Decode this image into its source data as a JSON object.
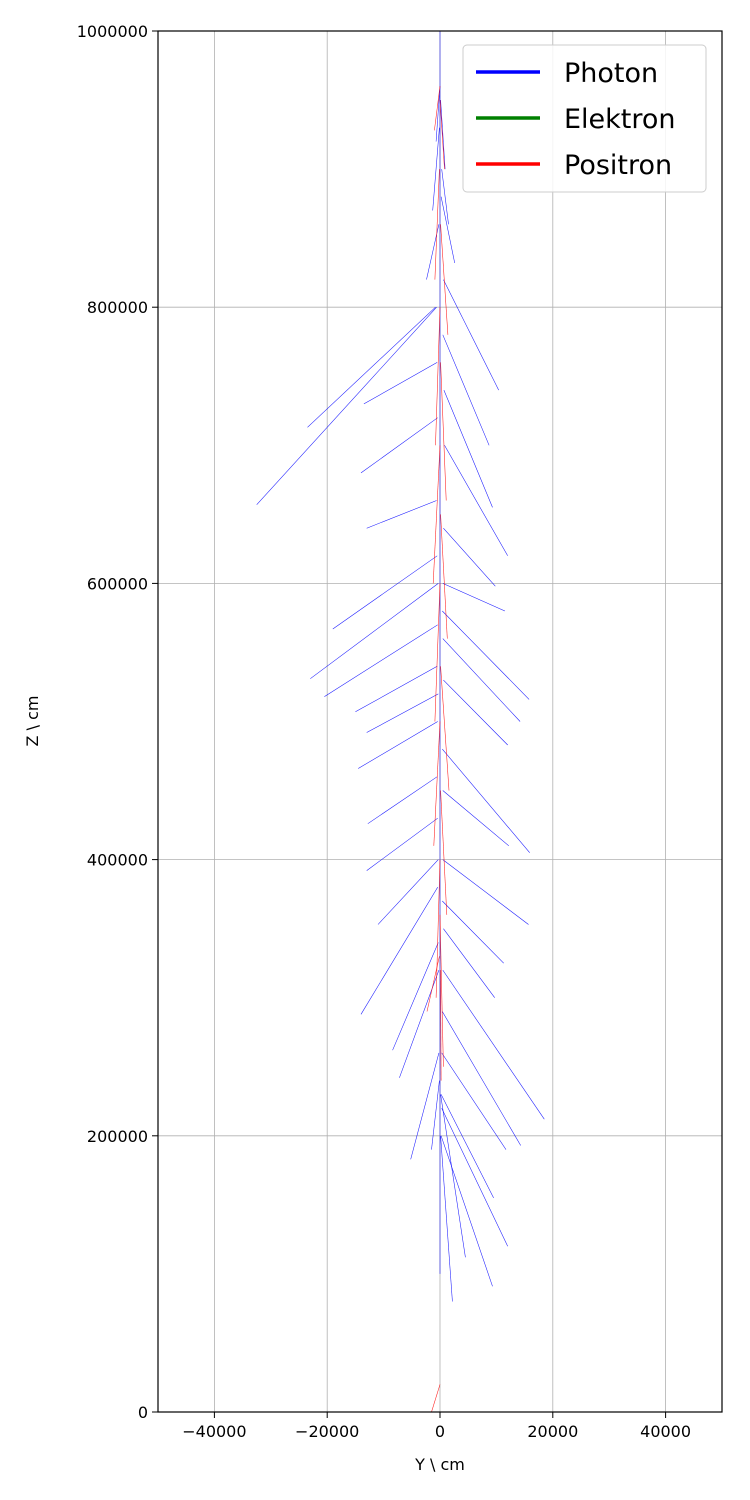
{
  "chart_data": {
    "type": "line",
    "title": "",
    "xlabel": "Y \\ cm",
    "ylabel": "Z \\ cm",
    "xlim": [
      -50000,
      50000
    ],
    "ylim": [
      0,
      1000000
    ],
    "grid": true,
    "legend_position": "top-right",
    "x_ticks": [
      -40000,
      -20000,
      0,
      20000,
      40000
    ],
    "y_ticks": [
      0,
      200000,
      400000,
      600000,
      800000,
      1000000
    ],
    "x_tick_labels": [
      "−40000",
      "−20000",
      "0",
      "20000",
      "40000"
    ],
    "y_tick_labels": [
      "0",
      "200000",
      "400000",
      "600000",
      "800000",
      "1000000"
    ],
    "series": [
      {
        "name": "Photon",
        "color": "#0000ff",
        "tracks": [
          [
            [
              0,
              1000000
            ],
            [
              0,
              100000
            ]
          ],
          [
            [
              -800,
              800000
            ],
            [
              -23500,
              713000
            ]
          ],
          [
            [
              -600,
              800000
            ],
            [
              -32500,
              657000
            ]
          ],
          [
            [
              -500,
              760000
            ],
            [
              -13500,
              730000
            ]
          ],
          [
            [
              600,
              820000
            ],
            [
              10400,
              740000
            ]
          ],
          [
            [
              500,
              780000
            ],
            [
              8700,
              700000
            ]
          ],
          [
            [
              700,
              740000
            ],
            [
              9300,
              655000
            ]
          ],
          [
            [
              800,
              700000
            ],
            [
              12000,
              620000
            ]
          ],
          [
            [
              -400,
              720000
            ],
            [
              -14000,
              680000
            ]
          ],
          [
            [
              -600,
              660000
            ],
            [
              -13000,
              640000
            ]
          ],
          [
            [
              -500,
              620000
            ],
            [
              -19000,
              567000
            ]
          ],
          [
            [
              -300,
              600000
            ],
            [
              -23000,
              531000
            ]
          ],
          [
            [
              -400,
              570000
            ],
            [
              -20500,
              518000
            ]
          ],
          [
            [
              500,
              600000
            ],
            [
              11500,
              580000
            ]
          ],
          [
            [
              600,
              640000
            ],
            [
              9800,
              598000
            ]
          ],
          [
            [
              400,
              580000
            ],
            [
              15800,
              516000
            ]
          ],
          [
            [
              500,
              560000
            ],
            [
              14200,
              500000
            ]
          ],
          [
            [
              600,
              530000
            ],
            [
              12000,
              483000
            ]
          ],
          [
            [
              -500,
              540000
            ],
            [
              -15000,
              507000
            ]
          ],
          [
            [
              -400,
              500000
            ],
            [
              -14500,
              466000
            ]
          ],
          [
            [
              -300,
              520000
            ],
            [
              -13000,
              492000
            ]
          ],
          [
            [
              400,
              480000
            ],
            [
              15900,
              405000
            ]
          ],
          [
            [
              500,
              450000
            ],
            [
              12200,
              410000
            ]
          ],
          [
            [
              -500,
              460000
            ],
            [
              -12800,
              426000
            ]
          ],
          [
            [
              -400,
              430000
            ],
            [
              -13000,
              392000
            ]
          ],
          [
            [
              -300,
              400000
            ],
            [
              -11000,
              353000
            ]
          ],
          [
            [
              500,
              400000
            ],
            [
              15700,
              353000
            ]
          ],
          [
            [
              400,
              370000
            ],
            [
              11300,
              325000
            ]
          ],
          [
            [
              600,
              350000
            ],
            [
              9700,
              300000
            ]
          ],
          [
            [
              -400,
              380000
            ],
            [
              -14000,
              288000
            ]
          ],
          [
            [
              -300,
              340000
            ],
            [
              -8400,
              262000
            ]
          ],
          [
            [
              -200,
              320000
            ],
            [
              -7200,
              242000
            ]
          ],
          [
            [
              500,
              320000
            ],
            [
              18500,
              212000
            ]
          ],
          [
            [
              400,
              290000
            ],
            [
              14300,
              193000
            ]
          ],
          [
            [
              300,
              260000
            ],
            [
              11700,
              190000
            ]
          ],
          [
            [
              200,
              230000
            ],
            [
              9500,
              155000
            ]
          ],
          [
            [
              300,
              220000
            ],
            [
              12000,
              120000
            ]
          ],
          [
            [
              200,
              200000
            ],
            [
              9300,
              91000
            ]
          ],
          [
            [
              100,
              230000
            ],
            [
              4500,
              112000
            ]
          ],
          [
            [
              100,
              200000
            ],
            [
              2200,
              80000
            ]
          ],
          [
            [
              -200,
              260000
            ],
            [
              -5200,
              183000
            ]
          ],
          [
            [
              -100,
              240000
            ],
            [
              -1500,
              190000
            ]
          ],
          [
            [
              200,
              880000
            ],
            [
              2600,
              832000
            ]
          ],
          [
            [
              -200,
              860000
            ],
            [
              -2400,
              820000
            ]
          ],
          [
            [
              300,
              900000
            ],
            [
              1500,
              860000
            ]
          ],
          [
            [
              -100,
              930000
            ],
            [
              -1300,
              870000
            ]
          ],
          [
            [
              100,
              950000
            ],
            [
              900,
              900000
            ]
          ],
          [
            [
              0,
              960000
            ],
            [
              -700,
              920000
            ]
          ]
        ]
      },
      {
        "name": "Elektron",
        "color": "#008000",
        "tracks": []
      },
      {
        "name": "Positron",
        "color": "#ff0000",
        "tracks": [
          [
            [
              0,
              960000
            ],
            [
              -1000,
              928000
            ]
          ],
          [
            [
              0,
              950000
            ],
            [
              800,
              900000
            ]
          ],
          [
            [
              -100,
              900000
            ],
            [
              -900,
              820000
            ]
          ],
          [
            [
              100,
              860000
            ],
            [
              1400,
              780000
            ]
          ],
          [
            [
              0,
              800000
            ],
            [
              -800,
              700000
            ]
          ],
          [
            [
              100,
              760000
            ],
            [
              1100,
              660000
            ]
          ],
          [
            [
              0,
              700000
            ],
            [
              -1200,
              600000
            ]
          ],
          [
            [
              100,
              650000
            ],
            [
              1300,
              560000
            ]
          ],
          [
            [
              0,
              600000
            ],
            [
              -900,
              500000
            ]
          ],
          [
            [
              100,
              540000
            ],
            [
              1600,
              450000
            ]
          ],
          [
            [
              0,
              500000
            ],
            [
              -1100,
              410000
            ]
          ],
          [
            [
              100,
              450000
            ],
            [
              1200,
              360000
            ]
          ],
          [
            [
              0,
              400000
            ],
            [
              -700,
              300000
            ]
          ],
          [
            [
              0,
              360000
            ],
            [
              600,
              250000
            ]
          ],
          [
            [
              -100,
              330000
            ],
            [
              -2300,
              290000
            ]
          ],
          [
            [
              100,
              320000
            ],
            [
              200,
              240000
            ]
          ],
          [
            [
              0,
              20000
            ],
            [
              -1500,
              0
            ]
          ]
        ]
      }
    ]
  }
}
